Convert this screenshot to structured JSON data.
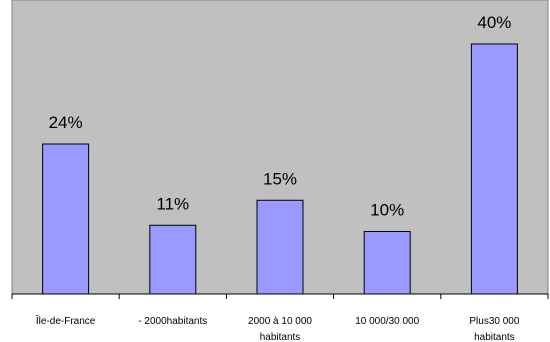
{
  "chart_data": {
    "type": "bar",
    "categories": [
      [
        "Île-de-France"
      ],
      [
        "- 2000habitants"
      ],
      [
        "2000 à 10 000",
        "habitants"
      ],
      [
        "10 000/30 000"
      ],
      [
        "Plus30 000",
        "habitants"
      ]
    ],
    "values": [
      24,
      11,
      15,
      10,
      40
    ],
    "value_labels": [
      "24%",
      "11%",
      "15%",
      "10%",
      "40%"
    ],
    "ylim": [
      0,
      40
    ],
    "grid": false,
    "legend": "none",
    "colors": {
      "plot_background": "#c0c0c0",
      "bar_fill": "#9999ff",
      "bar_stroke": "#000000",
      "axis": "#000000"
    }
  }
}
